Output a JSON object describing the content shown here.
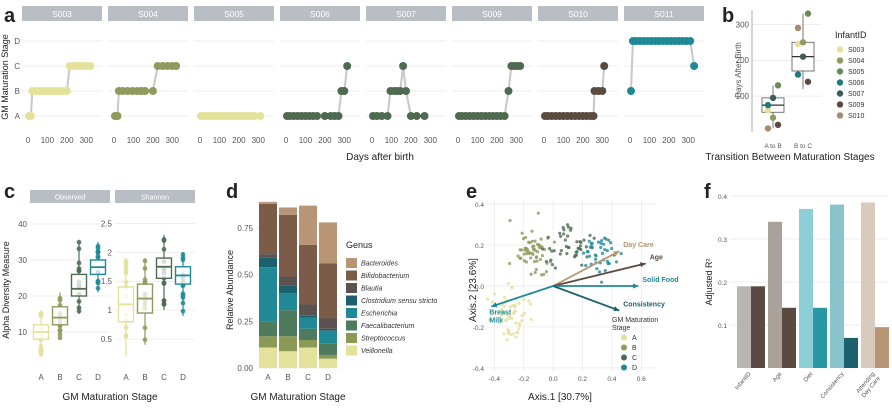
{
  "colors": {
    "infants": [
      "#e3e19a",
      "#8f9a5c",
      "#6c8a55",
      "#1f7b7e",
      "#3d5d56",
      "#5b4a40",
      "#a88a6e"
    ],
    "stages": {
      "A": "#e3e19a",
      "B": "#8f9a5c",
      "C": "#4e6b52",
      "D": "#1f8a96"
    },
    "genus": [
      "#b89575",
      "#7b5c49",
      "#5c5250",
      "#1c5f6d",
      "#1f8a96",
      "#4e7a5e",
      "#8a9a55",
      "#e3e19a"
    ],
    "f_bars": [
      "#b89575",
      "#7b5c49",
      "#1f8a96",
      "#1c5f6d"
    ]
  },
  "panels": {
    "a": "a",
    "b": "b",
    "c": "c",
    "d": "d",
    "e": "e",
    "f": "f"
  },
  "chart_data": [
    {
      "panel": "a",
      "type": "scatter",
      "ylabel": "GM Maturation Stage",
      "xlabel": "Days after birth",
      "stages": [
        "A",
        "B",
        "C",
        "D"
      ],
      "xticks": [
        "0",
        "100",
        "200",
        "300"
      ],
      "xlim": [
        0,
        350
      ],
      "facets": [
        {
          "name": "S003",
          "color": "#e3e19a",
          "points": [
            [
              5,
              "A"
            ],
            [
              15,
              "A"
            ],
            [
              22,
              "B"
            ],
            [
              40,
              "B"
            ],
            [
              60,
              "B"
            ],
            [
              80,
              "B"
            ],
            [
              100,
              "B"
            ],
            [
              120,
              "B"
            ],
            [
              140,
              "B"
            ],
            [
              160,
              "B"
            ],
            [
              180,
              "B"
            ],
            [
              200,
              "B"
            ],
            [
              215,
              "C"
            ],
            [
              240,
              "C"
            ],
            [
              260,
              "C"
            ],
            [
              280,
              "C"
            ],
            [
              300,
              "C"
            ],
            [
              320,
              "C"
            ]
          ]
        },
        {
          "name": "S004",
          "color": "#8f9a5c",
          "points": [
            [
              5,
              "A"
            ],
            [
              18,
              "A"
            ],
            [
              25,
              "B"
            ],
            [
              45,
              "B"
            ],
            [
              70,
              "B"
            ],
            [
              95,
              "B"
            ],
            [
              120,
              "B"
            ],
            [
              140,
              "B"
            ],
            [
              160,
              "B"
            ],
            [
              200,
              "B"
            ],
            [
              225,
              "C"
            ],
            [
              250,
              "C"
            ],
            [
              275,
              "C"
            ],
            [
              300,
              "C"
            ],
            [
              320,
              "C"
            ]
          ]
        },
        {
          "name": "S005",
          "color": "#e3e19a",
          "points": [
            [
              5,
              "A"
            ],
            [
              20,
              "A"
            ],
            [
              40,
              "A"
            ],
            [
              60,
              "A"
            ],
            [
              80,
              "A"
            ],
            [
              100,
              "A"
            ],
            [
              120,
              "A"
            ],
            [
              140,
              "A"
            ],
            [
              160,
              "A"
            ],
            [
              180,
              "A"
            ],
            [
              200,
              "A"
            ],
            [
              220,
              "A"
            ],
            [
              240,
              "A"
            ],
            [
              260,
              "A"
            ],
            [
              280,
              "A"
            ],
            [
              310,
              "A"
            ]
          ]
        },
        {
          "name": "S006",
          "color": "#4e6b52",
          "points": [
            [
              5,
              "A"
            ],
            [
              20,
              "A"
            ],
            [
              40,
              "A"
            ],
            [
              60,
              "A"
            ],
            [
              80,
              "A"
            ],
            [
              100,
              "A"
            ],
            [
              120,
              "A"
            ],
            [
              140,
              "A"
            ],
            [
              160,
              "A"
            ],
            [
              200,
              "A"
            ],
            [
              230,
              "A"
            ],
            [
              250,
              "A"
            ],
            [
              270,
              "A"
            ],
            [
              285,
              "B"
            ],
            [
              300,
              "B"
            ],
            [
              315,
              "C"
            ]
          ]
        },
        {
          "name": "S007",
          "color": "#4e6b52",
          "points": [
            [
              5,
              "A"
            ],
            [
              25,
              "A"
            ],
            [
              50,
              "A"
            ],
            [
              80,
              "A"
            ],
            [
              95,
              "B"
            ],
            [
              115,
              "B"
            ],
            [
              130,
              "B"
            ],
            [
              145,
              "B"
            ],
            [
              160,
              "C"
            ],
            [
              175,
              "B"
            ],
            [
              200,
              "A"
            ],
            [
              230,
              "A"
            ],
            [
              270,
              "A"
            ]
          ]
        },
        {
          "name": "S009",
          "color": "#4e6b52",
          "points": [
            [
              5,
              "A"
            ],
            [
              20,
              "A"
            ],
            [
              40,
              "A"
            ],
            [
              60,
              "A"
            ],
            [
              80,
              "A"
            ],
            [
              100,
              "A"
            ],
            [
              120,
              "A"
            ],
            [
              140,
              "A"
            ],
            [
              160,
              "A"
            ],
            [
              180,
              "A"
            ],
            [
              200,
              "A"
            ],
            [
              220,
              "A"
            ],
            [
              240,
              "A"
            ],
            [
              260,
              "B"
            ],
            [
              275,
              "C"
            ],
            [
              290,
              "C"
            ],
            [
              305,
              "C"
            ],
            [
              320,
              "C"
            ]
          ]
        },
        {
          "name": "S010",
          "color": "#5b4a40",
          "points": [
            [
              5,
              "A"
            ],
            [
              20,
              "A"
            ],
            [
              40,
              "A"
            ],
            [
              60,
              "A"
            ],
            [
              80,
              "A"
            ],
            [
              100,
              "A"
            ],
            [
              120,
              "A"
            ],
            [
              140,
              "A"
            ],
            [
              160,
              "A"
            ],
            [
              180,
              "A"
            ],
            [
              200,
              "A"
            ],
            [
              220,
              "A"
            ],
            [
              240,
              "A"
            ],
            [
              255,
              "A"
            ],
            [
              260,
              "B"
            ],
            [
              280,
              "B"
            ],
            [
              300,
              "B"
            ],
            [
              310,
              "C"
            ]
          ]
        },
        {
          "name": "S011",
          "color": "#1f8a96",
          "points": [
            [
              5,
              "B"
            ],
            [
              15,
              "D"
            ],
            [
              30,
              "D"
            ],
            [
              50,
              "D"
            ],
            [
              70,
              "D"
            ],
            [
              90,
              "D"
            ],
            [
              110,
              "D"
            ],
            [
              130,
              "D"
            ],
            [
              150,
              "D"
            ],
            [
              170,
              "D"
            ],
            [
              190,
              "D"
            ],
            [
              210,
              "D"
            ],
            [
              230,
              "D"
            ],
            [
              250,
              "D"
            ],
            [
              270,
              "D"
            ],
            [
              290,
              "D"
            ],
            [
              310,
              "D"
            ],
            [
              330,
              "C"
            ]
          ]
        }
      ]
    },
    {
      "panel": "b",
      "type": "box",
      "xlabel": "Transition Between Maturation Stages",
      "ylabel": "Days After Birth",
      "categories": [
        "A to B",
        "B to C"
      ],
      "ylim": [
        0,
        340
      ],
      "yticks": [
        100,
        200,
        300
      ],
      "boxes": [
        {
          "q1": 55,
          "median": 75,
          "q3": 95,
          "whisker_low": 10,
          "whisker_high": 130
        },
        {
          "q1": 170,
          "median": 210,
          "q3": 250,
          "whisker_low": 120,
          "whisker_high": 330
        }
      ],
      "points": [
        [
          {
            "id": "S003",
            "y": 60
          },
          {
            "id": "S004",
            "y": 40
          },
          {
            "id": "S005",
            "y": 130
          },
          {
            "id": "S006",
            "y": 75
          },
          {
            "id": "S007",
            "y": 95
          },
          {
            "id": "S009",
            "y": 20
          },
          {
            "id": "S010",
            "y": 10
          }
        ],
        [
          {
            "id": "S003",
            "y": 245
          },
          {
            "id": "S004",
            "y": 250
          },
          {
            "id": "S005",
            "y": 330
          },
          {
            "id": "S006",
            "y": 160
          },
          {
            "id": "S007",
            "y": 210
          },
          {
            "id": "S009",
            "y": 140
          },
          {
            "id": "S010",
            "y": 290
          }
        ]
      ],
      "legend_title": "InfantID",
      "legend": [
        "S003",
        "S004",
        "S005",
        "S006",
        "S007",
        "S009",
        "S010"
      ]
    },
    {
      "panel": "c",
      "type": "box",
      "xlabel": "GM Maturation Stage",
      "ylabel": "Alpha Diversity Measure",
      "categories": [
        "A",
        "B",
        "C",
        "D"
      ],
      "facets": [
        {
          "name": "Observed",
          "ylim": [
            0,
            45
          ],
          "yticks": [
            10,
            20,
            30,
            40
          ],
          "boxes": [
            {
              "q1": 8,
              "median": 10,
              "q3": 12,
              "whisker_low": 3,
              "whisker_high": 16
            },
            {
              "q1": 12,
              "median": 14,
              "q3": 17,
              "whisker_low": 8,
              "whisker_high": 21
            },
            {
              "q1": 20,
              "median": 22,
              "q3": 26,
              "whisker_low": 15,
              "whisker_high": 35
            },
            {
              "q1": 26,
              "median": 28,
              "q3": 30,
              "whisker_low": 21,
              "whisker_high": 35
            }
          ]
        },
        {
          "name": "Shannon",
          "ylim": [
            0,
            2.8
          ],
          "yticks": [
            0.5,
            1.0,
            1.5,
            2.0,
            2.5
          ],
          "boxes": [
            {
              "q1": 0.8,
              "median": 1.1,
              "q3": 1.4,
              "whisker_low": 0.2,
              "whisker_high": 1.9
            },
            {
              "q1": 0.95,
              "median": 1.2,
              "q3": 1.45,
              "whisker_low": 0.4,
              "whisker_high": 1.9
            },
            {
              "q1": 1.55,
              "median": 1.75,
              "q3": 1.9,
              "whisker_low": 1.0,
              "whisker_high": 2.3
            },
            {
              "q1": 1.45,
              "median": 1.6,
              "q3": 1.75,
              "whisker_low": 0.9,
              "whisker_high": 2.0
            }
          ]
        }
      ]
    },
    {
      "panel": "d",
      "type": "bar",
      "xlabel": "GM Maturation Stage",
      "ylabel": "Relative Abundance",
      "categories": [
        "A",
        "B",
        "C",
        "D"
      ],
      "ylim": [
        0,
        0.9
      ],
      "yticks": [
        "0.00",
        "0.25",
        "0.50",
        "0.75"
      ],
      "legend_title": "Genus",
      "series": [
        {
          "name": "Bacteroides",
          "values": [
            0.01,
            0.04,
            0.21,
            0.22
          ]
        },
        {
          "name": "Bifidobacterium",
          "values": [
            0.27,
            0.33,
            0.32,
            0.29
          ]
        },
        {
          "name": "Blautia",
          "values": [
            0.02,
            0.05,
            0.06,
            0.06
          ]
        },
        {
          "name": "Clostridium sensu stricto",
          "values": [
            0.05,
            0.04,
            0.01,
            0.01
          ]
        },
        {
          "name": "Escherichia",
          "values": [
            0.29,
            0.09,
            0.06,
            0.07
          ]
        },
        {
          "name": "Faecalibacterium",
          "values": [
            0.08,
            0.14,
            0.06,
            0.06
          ]
        },
        {
          "name": "Streptococcus",
          "values": [
            0.06,
            0.08,
            0.04,
            0.02
          ]
        },
        {
          "name": "Veillonella",
          "values": [
            0.11,
            0.09,
            0.11,
            0.05
          ]
        }
      ]
    },
    {
      "panel": "e",
      "type": "scatter",
      "xlabel": "Axis.1   [30.7%]",
      "ylabel": "Axis.2   [23.6%]",
      "xlim": [
        -0.45,
        0.7
      ],
      "ylim": [
        -0.42,
        0.42
      ],
      "xticks": [
        -0.4,
        -0.2,
        0.0,
        0.2,
        0.4,
        0.6
      ],
      "yticks": [
        -0.4,
        -0.2,
        0.0,
        0.2,
        0.4
      ],
      "arrows": [
        {
          "label": "Day Care",
          "x": 0.45,
          "y": 0.17,
          "color": "#b89575"
        },
        {
          "label": "Age",
          "x": 0.63,
          "y": 0.11,
          "color": "#5b4a40"
        },
        {
          "label": "Solid Food",
          "x": 0.58,
          "y": 0.0,
          "color": "#1f8a96"
        },
        {
          "label": "Consistency",
          "x": 0.45,
          "y": -0.12,
          "color": "#1c5f6d"
        },
        {
          "label": "Breast\nMilk",
          "x": -0.42,
          "y": -0.1,
          "color": "#1f8a96"
        }
      ],
      "legend_title": "GM Maturation\nStage",
      "legend": [
        "A",
        "B",
        "C",
        "D"
      ]
    },
    {
      "panel": "f",
      "type": "bar",
      "ylabel": "Adjusted R²",
      "categories": [
        "InfantID",
        "Age",
        "Diet",
        "Consistency",
        "Attending\nDay Care"
      ],
      "ylim": [
        0,
        0.4
      ],
      "yticks": [
        "0.1",
        "0.2",
        "0.3",
        "0.4"
      ],
      "bars": [
        [
          {
            "value": 0.19,
            "color": "#b8b4b0"
          },
          {
            "value": 0.19,
            "color": "#5b4a40"
          }
        ],
        [
          {
            "value": 0.34,
            "color": "#aaa29a"
          },
          {
            "value": 0.14,
            "color": "#5b4a40"
          }
        ],
        [
          {
            "value": 0.37,
            "color": "#8ccfd6"
          },
          {
            "value": 0.14,
            "color": "#2a98a4"
          }
        ],
        [
          {
            "value": 0.38,
            "color": "#88c4cc"
          },
          {
            "value": 0.07,
            "color": "#1c5f6d"
          }
        ],
        [
          {
            "value": 0.385,
            "color": "#d8cabd"
          },
          {
            "value": 0.095,
            "color": "#b89575"
          }
        ]
      ]
    }
  ]
}
